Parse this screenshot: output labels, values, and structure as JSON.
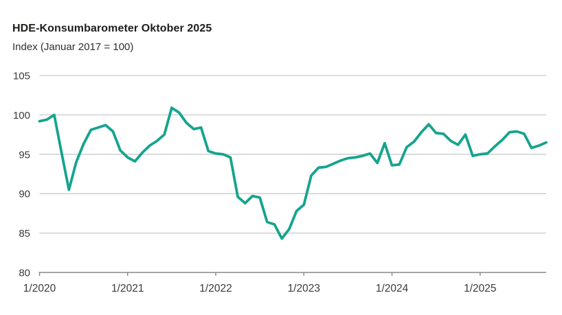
{
  "chart_data": {
    "type": "line",
    "title": "HDE-Konsumbarometer Oktober 2025",
    "subtitle": "Index (Januar 2017 = 100)",
    "ylabel": "",
    "xlabel": "",
    "ylim": [
      80,
      105
    ],
    "yticks": [
      105,
      100,
      95,
      90,
      85,
      80
    ],
    "grid": "horizontal",
    "legend": "none",
    "line_color": "#15a48d",
    "grid_color": "#c9c9c9",
    "axis_color": "#a5a5a5",
    "tick_color": "#8c8c8c",
    "label_color": "#3a3a38",
    "xticks": [
      {
        "index": 0,
        "label": "1/2020"
      },
      {
        "index": 12,
        "label": "1/2021"
      },
      {
        "index": 24,
        "label": "1/2022"
      },
      {
        "index": 36,
        "label": "1/2023"
      },
      {
        "index": 48,
        "label": "1/2024"
      },
      {
        "index": 60,
        "label": "1/2025"
      }
    ],
    "months": [
      "1/2020",
      "2/2020",
      "3/2020",
      "4/2020",
      "5/2020",
      "6/2020",
      "7/2020",
      "8/2020",
      "9/2020",
      "10/2020",
      "11/2020",
      "12/2020",
      "1/2021",
      "2/2021",
      "3/2021",
      "4/2021",
      "5/2021",
      "6/2021",
      "7/2021",
      "8/2021",
      "9/2021",
      "10/2021",
      "11/2021",
      "12/2021",
      "1/2022",
      "2/2022",
      "3/2022",
      "4/2022",
      "5/2022",
      "6/2022",
      "7/2022",
      "8/2022",
      "9/2022",
      "10/2022",
      "11/2022",
      "12/2022",
      "1/2023",
      "2/2023",
      "3/2023",
      "4/2023",
      "5/2023",
      "6/2023",
      "7/2023",
      "8/2023",
      "9/2023",
      "10/2023",
      "11/2023",
      "12/2023",
      "1/2024",
      "2/2024",
      "3/2024",
      "4/2024",
      "5/2024",
      "6/2024",
      "7/2024",
      "8/2024",
      "9/2024",
      "10/2024",
      "11/2024",
      "12/2024",
      "1/2025",
      "2/2025",
      "3/2025",
      "4/2025",
      "5/2025",
      "6/2025",
      "7/2025",
      "8/2025",
      "9/2025",
      "10/2025"
    ],
    "values": [
      99.2,
      99.4,
      100.0,
      95.2,
      90.5,
      94.0,
      96.3,
      98.1,
      98.4,
      98.7,
      97.9,
      95.5,
      94.6,
      94.1,
      95.2,
      96.1,
      96.7,
      97.5,
      100.9,
      100.3,
      99.0,
      98.2,
      98.4,
      95.4,
      95.1,
      95.0,
      94.6,
      89.6,
      88.8,
      89.7,
      89.5,
      86.4,
      86.1,
      84.3,
      85.5,
      87.8,
      88.6,
      92.3,
      93.3,
      93.4,
      93.8,
      94.2,
      94.5,
      94.6,
      94.8,
      95.1,
      93.9,
      96.4,
      93.6,
      93.7,
      95.9,
      96.6,
      97.8,
      98.8,
      97.7,
      97.6,
      96.7,
      96.2,
      97.5,
      94.8,
      95.0,
      95.1,
      96.0,
      96.8,
      97.8,
      97.9,
      97.6,
      95.8,
      96.1,
      96.5
    ]
  }
}
